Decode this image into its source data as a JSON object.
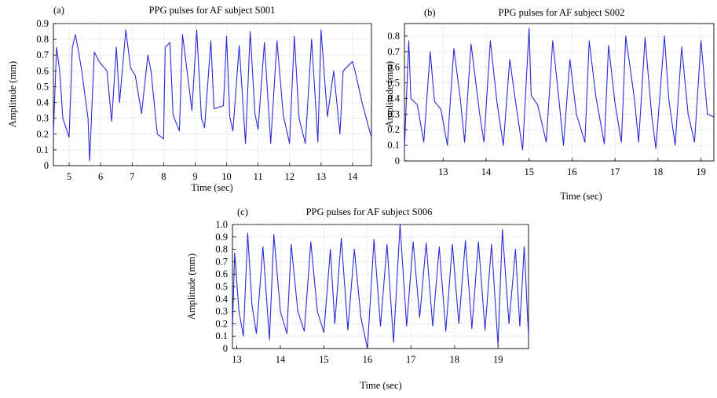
{
  "chart_data": [
    {
      "id": "a",
      "type": "line",
      "panel_label": "(a)",
      "title": "PPG pulses for AF subject S001",
      "xlabel": "Time (sec)",
      "ylabel": "Amplitude (mm)",
      "xlim": [
        4.5,
        14.6
      ],
      "ylim": [
        0,
        0.9
      ],
      "xticks": [
        5,
        6,
        7,
        8,
        9,
        10,
        11,
        12,
        13,
        14
      ],
      "yticks": [
        0,
        0.1,
        0.2,
        0.3,
        0.4,
        0.5,
        0.6,
        0.7,
        0.8,
        0.9
      ],
      "xtick_labels": [
        "5",
        "6",
        "7",
        "8",
        "9",
        "10",
        "11",
        "12",
        "13",
        "14"
      ],
      "ytick_labels": [
        "0",
        "0.1",
        "0.2",
        "0.3",
        "0.4",
        "0.5",
        "0.6",
        "0.7",
        "0.8",
        "0.9"
      ],
      "grid": true,
      "line_color": "#2b2bd6",
      "series": [
        {
          "x": [
            4.5,
            4.6,
            4.7,
            4.8,
            5.0,
            5.1,
            5.2,
            5.3,
            5.4,
            5.6,
            5.65,
            5.8,
            5.95,
            6.2,
            6.35,
            6.5,
            6.6,
            6.8,
            6.95,
            7.1,
            7.3,
            7.5,
            7.6,
            7.8,
            8.0,
            8.05,
            8.2,
            8.3,
            8.5,
            8.6,
            8.9,
            9.05,
            9.2,
            9.3,
            9.5,
            9.6,
            9.9,
            10.0,
            10.1,
            10.2,
            10.4,
            10.6,
            10.75,
            10.9,
            11.0,
            11.2,
            11.4,
            11.6,
            11.8,
            12.0,
            12.15,
            12.3,
            12.5,
            12.7,
            12.9,
            13.0,
            13.2,
            13.4,
            13.6,
            13.7,
            14.0,
            14.1,
            14.3,
            14.5,
            14.6
          ],
          "y": [
            0.2,
            0.75,
            0.6,
            0.3,
            0.18,
            0.75,
            0.83,
            0.72,
            0.6,
            0.3,
            0.03,
            0.72,
            0.66,
            0.6,
            0.28,
            0.75,
            0.4,
            0.86,
            0.62,
            0.57,
            0.33,
            0.7,
            0.6,
            0.2,
            0.17,
            0.75,
            0.78,
            0.32,
            0.22,
            0.83,
            0.35,
            0.86,
            0.3,
            0.24,
            0.79,
            0.36,
            0.38,
            0.82,
            0.31,
            0.22,
            0.76,
            0.14,
            0.85,
            0.33,
            0.23,
            0.78,
            0.14,
            0.79,
            0.32,
            0.14,
            0.82,
            0.3,
            0.14,
            0.8,
            0.15,
            0.86,
            0.31,
            0.6,
            0.2,
            0.6,
            0.66,
            0.58,
            0.4,
            0.25,
            0.18
          ]
        }
      ]
    },
    {
      "id": "b",
      "type": "line",
      "panel_label": "(b)",
      "title": "PPG pulses for AF subject S002",
      "xlabel": "Time (sec)",
      "ylabel": "Amplitude (mm)",
      "xlim": [
        12.1,
        19.3
      ],
      "ylim": [
        0,
        0.88
      ],
      "xticks": [
        13,
        14,
        15,
        16,
        17,
        18,
        19
      ],
      "yticks": [
        0,
        0.1,
        0.2,
        0.3,
        0.4,
        0.5,
        0.6,
        0.7,
        0.8
      ],
      "xtick_labels": [
        "13",
        "14",
        "15",
        "16",
        "17",
        "18",
        "19"
      ],
      "ytick_labels": [
        "0",
        "0.1",
        "0.2",
        "0.3",
        "0.4",
        "0.5",
        "0.6",
        "0.7",
        "0.8"
      ],
      "grid": true,
      "line_color": "#2b2bd6",
      "series": [
        {
          "x": [
            12.1,
            12.2,
            12.25,
            12.4,
            12.55,
            12.7,
            12.8,
            12.95,
            13.1,
            13.25,
            13.4,
            13.5,
            13.65,
            13.85,
            13.95,
            14.1,
            14.25,
            14.4,
            14.55,
            14.7,
            14.85,
            15.0,
            15.05,
            15.2,
            15.4,
            15.55,
            15.7,
            15.8,
            15.95,
            16.1,
            16.3,
            16.4,
            16.55,
            16.75,
            16.85,
            17.0,
            17.15,
            17.25,
            17.45,
            17.55,
            17.7,
            17.85,
            17.95,
            18.15,
            18.25,
            18.4,
            18.55,
            18.7,
            18.85,
            19.0,
            19.15,
            19.3
          ],
          "y": [
            0.08,
            0.77,
            0.4,
            0.36,
            0.12,
            0.7,
            0.38,
            0.33,
            0.1,
            0.72,
            0.4,
            0.12,
            0.75,
            0.3,
            0.12,
            0.77,
            0.38,
            0.1,
            0.65,
            0.35,
            0.07,
            0.85,
            0.42,
            0.36,
            0.12,
            0.77,
            0.38,
            0.1,
            0.65,
            0.3,
            0.12,
            0.77,
            0.42,
            0.11,
            0.74,
            0.37,
            0.12,
            0.8,
            0.4,
            0.12,
            0.79,
            0.3,
            0.08,
            0.8,
            0.4,
            0.1,
            0.73,
            0.3,
            0.12,
            0.77,
            0.3,
            0.28
          ]
        }
      ]
    },
    {
      "id": "c",
      "type": "line",
      "panel_label": "(c)",
      "title": "PPG pulses for AF subject S006",
      "xlabel": "Time (sec)",
      "ylabel": "Amplitude (mm)",
      "xlim": [
        12.9,
        19.7
      ],
      "ylim": [
        0,
        1.0
      ],
      "xticks": [
        13,
        14,
        15,
        16,
        17,
        18,
        19
      ],
      "yticks": [
        0,
        0.1,
        0.2,
        0.3,
        0.4,
        0.5,
        0.6,
        0.7,
        0.8,
        0.9,
        1.0
      ],
      "xtick_labels": [
        "13",
        "14",
        "15",
        "16",
        "17",
        "18",
        "19"
      ],
      "ytick_labels": [
        "0",
        "0.1",
        "0.2",
        "0.3",
        "0.4",
        "0.5",
        "0.6",
        "0.7",
        "0.8",
        "0.9",
        "1.0"
      ],
      "grid": true,
      "line_color": "#2b2bd6",
      "series": [
        {
          "x": [
            12.9,
            12.95,
            13.05,
            13.15,
            13.25,
            13.35,
            13.45,
            13.6,
            13.75,
            13.85,
            14.0,
            14.15,
            14.25,
            14.4,
            14.55,
            14.7,
            14.85,
            15.0,
            15.15,
            15.25,
            15.4,
            15.55,
            15.7,
            15.85,
            16.0,
            16.15,
            16.3,
            16.45,
            16.6,
            16.75,
            16.9,
            17.05,
            17.2,
            17.35,
            17.5,
            17.65,
            17.8,
            17.95,
            18.1,
            18.25,
            18.4,
            18.55,
            18.7,
            18.85,
            19.0,
            19.1,
            19.25,
            19.4,
            19.5,
            19.6,
            19.7
          ],
          "y": [
            0.15,
            0.77,
            0.3,
            0.1,
            0.93,
            0.35,
            0.12,
            0.82,
            0.07,
            0.92,
            0.3,
            0.12,
            0.84,
            0.3,
            0.14,
            0.86,
            0.3,
            0.13,
            0.8,
            0.2,
            0.89,
            0.15,
            0.8,
            0.25,
            0.0,
            0.88,
            0.18,
            0.84,
            0.05,
            1.0,
            0.18,
            0.86,
            0.25,
            0.85,
            0.18,
            0.82,
            0.14,
            0.84,
            0.2,
            0.87,
            0.16,
            0.86,
            0.15,
            0.84,
            0.02,
            0.96,
            0.2,
            0.8,
            0.18,
            0.82,
            0.1
          ]
        }
      ]
    }
  ]
}
